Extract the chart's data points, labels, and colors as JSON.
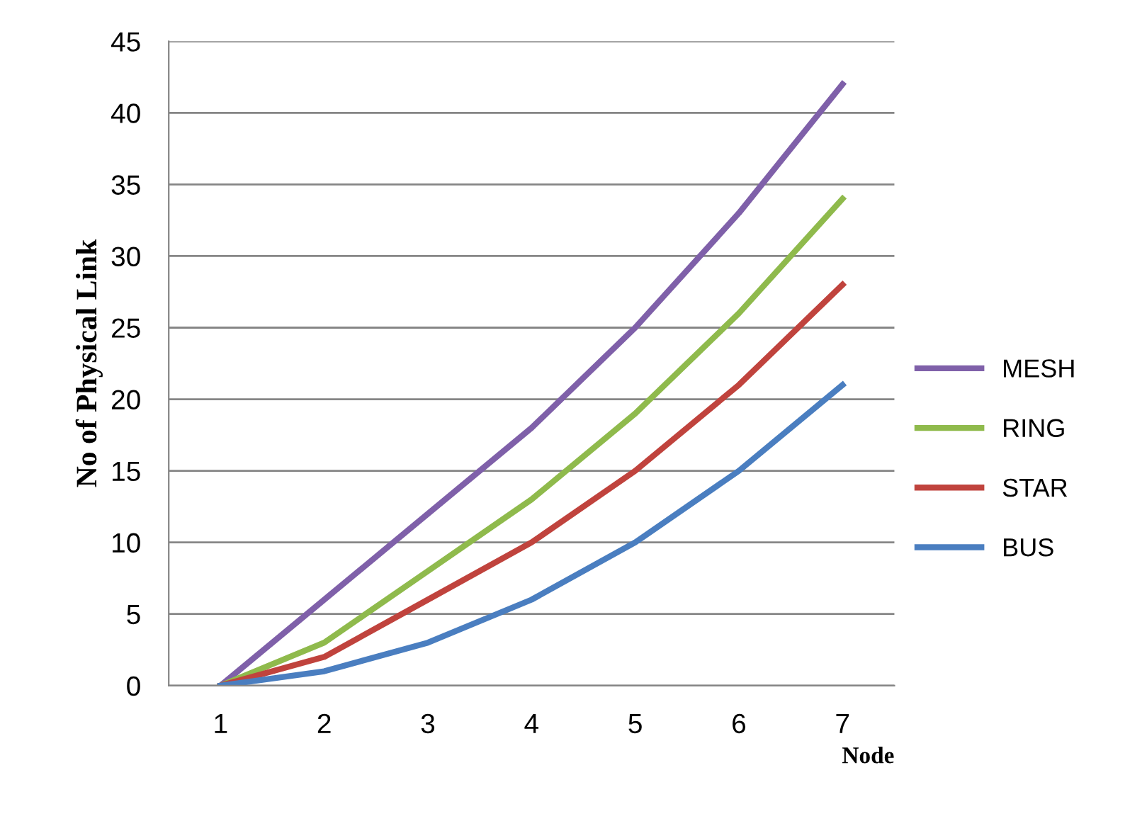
{
  "chart_data": {
    "type": "line",
    "xlabel": "Node",
    "ylabel": "No of Physical Link",
    "categories": [
      "1",
      "2",
      "3",
      "4",
      "5",
      "6",
      "7"
    ],
    "series": [
      {
        "name": "MESH",
        "color": "#7f60a9",
        "values": [
          0,
          6,
          12,
          18,
          25,
          33,
          42
        ]
      },
      {
        "name": "RING",
        "color": "#8fba4c",
        "values": [
          0,
          3,
          8,
          13,
          19,
          26,
          34
        ]
      },
      {
        "name": "STAR",
        "color": "#c0433d",
        "values": [
          0,
          2,
          6,
          10,
          15,
          21,
          28
        ]
      },
      {
        "name": "BUS",
        "color": "#4a7ec0",
        "values": [
          0,
          1,
          3,
          6,
          10,
          15,
          21
        ]
      }
    ],
    "ylim": [
      0,
      45
    ],
    "yticks": [
      0,
      5,
      10,
      15,
      20,
      25,
      30,
      35,
      40,
      45
    ],
    "grid": "y",
    "legend": "right",
    "marker": "none",
    "line_style": "solid"
  }
}
